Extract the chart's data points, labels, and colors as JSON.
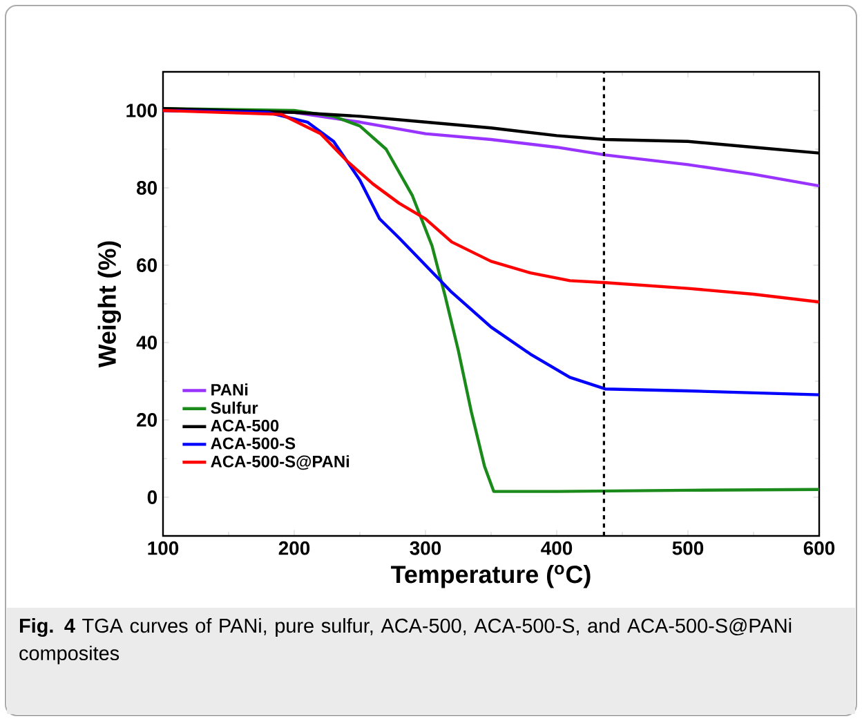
{
  "chart_data": {
    "type": "line",
    "xlabel": "Temperature ($^{o}$C)",
    "ylabel": "Weight (%)",
    "xlim": [
      100,
      600
    ],
    "ylim": [
      -10,
      110
    ],
    "xticks": [
      100,
      200,
      300,
      400,
      500,
      600
    ],
    "yticks": [
      0,
      20,
      40,
      60,
      80,
      100
    ],
    "legend": "bottom left",
    "marker": "none",
    "line_style": "solid",
    "series": [
      {
        "name": "PANi",
        "color": "#9933ff",
        "x": [
          100,
          200,
          250,
          300,
          350,
          400,
          437,
          500,
          550,
          600
        ],
        "values": [
          100,
          99.5,
          97,
          94,
          92.5,
          90.5,
          88.5,
          86,
          83.5,
          80.5
        ]
      },
      {
        "name": "Sulfur",
        "color": "#1a8a1a",
        "x": [
          100,
          200,
          230,
          250,
          270,
          290,
          305,
          315,
          325,
          335,
          345,
          352,
          400,
          500,
          600
        ],
        "values": [
          100.5,
          100,
          98.5,
          96,
          90,
          78,
          65,
          52,
          38,
          22,
          8,
          1.5,
          1.5,
          1.8,
          2
        ]
      },
      {
        "name": "ACA-500",
        "color": "#000000",
        "x": [
          100,
          200,
          250,
          300,
          350,
          400,
          437,
          500,
          550,
          600
        ],
        "values": [
          100.5,
          99.5,
          98.5,
          97,
          95.5,
          93.5,
          92.5,
          92,
          90.5,
          89
        ]
      },
      {
        "name": "ACA-500-S",
        "color": "#0000ff",
        "x": [
          100,
          180,
          210,
          230,
          250,
          265,
          280,
          300,
          320,
          350,
          380,
          410,
          437,
          500,
          600
        ],
        "values": [
          100,
          99.5,
          97,
          92,
          82,
          72,
          67,
          60,
          53,
          44,
          37,
          31,
          28,
          27.5,
          26.5
        ]
      },
      {
        "name": "ACA-500-S@PANi",
        "color": "#ff0000",
        "x": [
          100,
          190,
          220,
          240,
          260,
          280,
          300,
          320,
          350,
          380,
          410,
          437,
          500,
          550,
          600
        ],
        "values": [
          100,
          99,
          94,
          87,
          81,
          76,
          72,
          66,
          61,
          58,
          56,
          55.5,
          54,
          52.5,
          50.5
        ]
      }
    ],
    "ref_lines": [
      {
        "axis": "x",
        "value": 436,
        "color": "#000000",
        "line_style": "dashed"
      }
    ],
    "annotations": [
      "**Fig. 4** TGA curves of PANi, pure sulfur, ACA-500, ACA-500-S, and ACA-500-S@PANi composites"
    ]
  }
}
